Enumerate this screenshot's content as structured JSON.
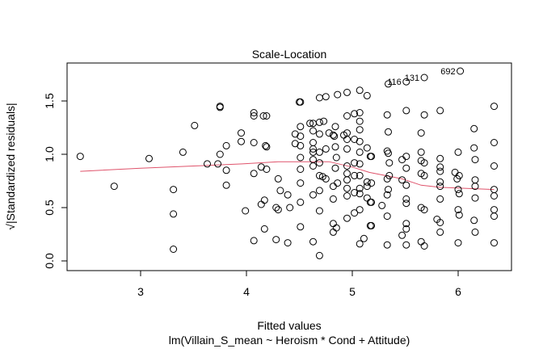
{
  "chart_data": {
    "type": "scatter",
    "title": "Scale-Location",
    "xlabel": "Fitted values",
    "subtitle": "lm(Villain_S_mean ~ Heroism * Cond + Attitude)",
    "ylabel": "√|Standardized residuals|",
    "xlim": [
      2.35,
      6.55
    ],
    "ylim": [
      0.0,
      1.85
    ],
    "x_ticks": [
      "3",
      "4",
      "5",
      "6"
    ],
    "x_tick_values": [
      3,
      4,
      5,
      6
    ],
    "y_ticks": [
      "0.0",
      "0.5",
      "1.0",
      "1.5"
    ],
    "y_tick_values": [
      0.0,
      0.5,
      1.0,
      1.5
    ],
    "grid": false,
    "smooth_color": "#DF536B",
    "point_color": "#000000",
    "smooth": [
      [
        2.43,
        0.84
      ],
      [
        3.0,
        0.87
      ],
      [
        3.5,
        0.89
      ],
      [
        3.96,
        0.91
      ],
      [
        4.3,
        0.93
      ],
      [
        4.78,
        0.93
      ],
      [
        5.0,
        0.88
      ],
      [
        5.16,
        0.83
      ],
      [
        5.47,
        0.77
      ],
      [
        5.65,
        0.71
      ],
      [
        5.83,
        0.69
      ],
      [
        6.34,
        0.67
      ]
    ],
    "labeled_points": [
      {
        "label": "116",
        "x": 5.51,
        "y": 1.68
      },
      {
        "label": "131",
        "x": 5.68,
        "y": 1.72
      },
      {
        "label": "692",
        "x": 6.02,
        "y": 1.78
      }
    ],
    "points": [
      [
        2.43,
        0.98
      ],
      [
        2.75,
        0.7
      ],
      [
        3.08,
        0.96
      ],
      [
        3.31,
        0.67
      ],
      [
        3.31,
        0.44
      ],
      [
        3.31,
        0.11
      ],
      [
        3.4,
        1.02
      ],
      [
        3.51,
        1.27
      ],
      [
        3.63,
        0.91
      ],
      [
        3.73,
        0.91
      ],
      [
        3.75,
        1.0
      ],
      [
        3.75,
        1.44
      ],
      [
        3.75,
        1.45
      ],
      [
        3.81,
        1.08
      ],
      [
        3.81,
        0.85
      ],
      [
        3.81,
        0.71
      ],
      [
        3.95,
        1.2
      ],
      [
        3.95,
        1.12
      ],
      [
        3.99,
        0.47
      ],
      [
        4.07,
        1.39
      ],
      [
        4.07,
        1.36
      ],
      [
        4.07,
        1.11
      ],
      [
        4.07,
        0.82
      ],
      [
        4.07,
        0.19
      ],
      [
        4.14,
        0.88
      ],
      [
        4.14,
        0.53
      ],
      [
        4.16,
        1.36
      ],
      [
        4.19,
        1.36
      ],
      [
        4.17,
        0.57
      ],
      [
        4.17,
        0.3
      ],
      [
        4.18,
        1.08
      ],
      [
        4.19,
        1.07
      ],
      [
        4.19,
        0.86
      ],
      [
        4.28,
        0.5
      ],
      [
        4.28,
        0.2
      ],
      [
        4.3,
        0.77
      ],
      [
        4.3,
        0.48
      ],
      [
        4.32,
        0.66
      ],
      [
        4.39,
        0.62
      ],
      [
        4.39,
        0.17
      ],
      [
        4.41,
        0.5
      ],
      [
        4.46,
        1.19
      ],
      [
        4.46,
        1.1
      ],
      [
        4.5,
        1.49
      ],
      [
        4.51,
        1.49
      ],
      [
        4.51,
        1.26
      ],
      [
        4.51,
        1.17
      ],
      [
        4.51,
        1.08
      ],
      [
        4.51,
        0.97
      ],
      [
        4.51,
        0.86
      ],
      [
        4.51,
        0.73
      ],
      [
        4.51,
        0.55
      ],
      [
        4.51,
        0.32
      ],
      [
        4.6,
        1.29
      ],
      [
        4.63,
        1.29
      ],
      [
        4.63,
        1.22
      ],
      [
        4.63,
        1.11
      ],
      [
        4.63,
        1.05
      ],
      [
        4.63,
        1.02
      ],
      [
        4.63,
        0.95
      ],
      [
        4.63,
        0.89
      ],
      [
        4.63,
        0.62
      ],
      [
        4.63,
        0.18
      ],
      [
        4.69,
        1.53
      ],
      [
        4.75,
        1.54
      ],
      [
        4.69,
        1.3
      ],
      [
        4.73,
        1.31
      ],
      [
        4.69,
        1.19
      ],
      [
        4.69,
        1.02
      ],
      [
        4.69,
        0.92
      ],
      [
        4.69,
        0.8
      ],
      [
        4.69,
        0.66
      ],
      [
        4.69,
        0.47
      ],
      [
        4.69,
        0.05
      ],
      [
        4.75,
        1.05
      ],
      [
        4.75,
        0.77
      ],
      [
        4.72,
        0.79
      ],
      [
        4.78,
        1.2
      ],
      [
        4.82,
        1.18
      ],
      [
        4.83,
        1.17
      ],
      [
        4.84,
        1.26
      ],
      [
        4.84,
        1.07
      ],
      [
        4.85,
        0.97
      ],
      [
        4.84,
        0.87
      ],
      [
        4.82,
        0.7
      ],
      [
        4.86,
        0.73
      ],
      [
        4.82,
        0.58
      ],
      [
        4.82,
        0.35
      ],
      [
        4.85,
        0.31
      ],
      [
        4.82,
        0.27
      ],
      [
        4.86,
        1.56
      ],
      [
        4.92,
        1.18
      ],
      [
        4.95,
        1.58
      ],
      [
        5.07,
        1.6
      ],
      [
        5.14,
        1.55
      ],
      [
        4.95,
        1.36
      ],
      [
        5.02,
        1.38
      ],
      [
        5.07,
        1.39
      ],
      [
        5.07,
        1.31
      ],
      [
        5.07,
        1.23
      ],
      [
        4.95,
        1.2
      ],
      [
        4.95,
        1.14
      ],
      [
        4.95,
        1.05
      ],
      [
        4.95,
        0.89
      ],
      [
        4.95,
        0.82
      ],
      [
        4.95,
        0.76
      ],
      [
        4.95,
        0.68
      ],
      [
        4.95,
        0.61
      ],
      [
        4.95,
        0.4
      ],
      [
        5.02,
        1.14
      ],
      [
        5.02,
        0.92
      ],
      [
        5.02,
        0.8
      ],
      [
        5.02,
        0.64
      ],
      [
        5.02,
        0.45
      ],
      [
        5.07,
        1.12
      ],
      [
        5.07,
        1.02
      ],
      [
        5.07,
        0.91
      ],
      [
        5.07,
        0.8
      ],
      [
        5.07,
        0.68
      ],
      [
        5.07,
        0.63
      ],
      [
        5.07,
        0.48
      ],
      [
        5.07,
        0.16
      ],
      [
        5.11,
        0.21
      ],
      [
        5.14,
        1.06
      ],
      [
        5.14,
        0.74
      ],
      [
        5.14,
        0.7
      ],
      [
        5.14,
        0.59
      ],
      [
        5.17,
        0.55
      ],
      [
        5.17,
        0.33
      ],
      [
        5.17,
        0.98
      ],
      [
        5.18,
        0.98
      ],
      [
        5.18,
        0.73
      ],
      [
        5.18,
        0.55
      ],
      [
        5.18,
        0.33
      ],
      [
        5.28,
        0.52
      ],
      [
        5.33,
        1.37
      ],
      [
        5.34,
        1.21
      ],
      [
        5.34,
        1.66
      ],
      [
        5.33,
        1.03
      ],
      [
        5.34,
        1.01
      ],
      [
        5.35,
        0.92
      ],
      [
        5.35,
        0.8
      ],
      [
        5.33,
        0.77
      ],
      [
        5.34,
        0.67
      ],
      [
        5.33,
        0.62
      ],
      [
        5.33,
        0.42
      ],
      [
        5.33,
        0.15
      ],
      [
        5.47,
        0.95
      ],
      [
        5.51,
        0.98
      ],
      [
        5.51,
        1.41
      ],
      [
        5.51,
        0.87
      ],
      [
        5.47,
        0.76
      ],
      [
        5.51,
        0.71
      ],
      [
        5.51,
        0.58
      ],
      [
        5.51,
        0.54
      ],
      [
        5.51,
        0.35
      ],
      [
        5.51,
        0.3
      ],
      [
        5.47,
        0.24
      ],
      [
        5.51,
        0.15
      ],
      [
        5.68,
        1.37
      ],
      [
        5.65,
        1.2
      ],
      [
        5.65,
        1.02
      ],
      [
        5.65,
        0.94
      ],
      [
        5.68,
        0.92
      ],
      [
        5.65,
        0.82
      ],
      [
        5.68,
        0.8
      ],
      [
        5.65,
        0.5
      ],
      [
        5.68,
        0.48
      ],
      [
        5.65,
        0.18
      ],
      [
        5.68,
        0.14
      ],
      [
        5.83,
        1.41
      ],
      [
        5.83,
        0.96
      ],
      [
        5.83,
        0.88
      ],
      [
        5.83,
        0.84
      ],
      [
        5.83,
        0.74
      ],
      [
        5.83,
        0.7
      ],
      [
        5.83,
        0.58
      ],
      [
        5.8,
        0.39
      ],
      [
        5.83,
        0.36
      ],
      [
        5.83,
        0.27
      ],
      [
        6.0,
        1.02
      ],
      [
        5.97,
        0.83
      ],
      [
        6.01,
        0.8
      ],
      [
        5.99,
        0.77
      ],
      [
        6.0,
        0.67
      ],
      [
        6.01,
        0.63
      ],
      [
        6.0,
        0.48
      ],
      [
        6.01,
        0.43
      ],
      [
        6.0,
        0.17
      ],
      [
        6.15,
        1.24
      ],
      [
        6.15,
        1.06
      ],
      [
        6.16,
        0.95
      ],
      [
        6.16,
        0.76
      ],
      [
        6.16,
        0.7
      ],
      [
        6.16,
        0.59
      ],
      [
        6.15,
        0.38
      ],
      [
        6.16,
        0.27
      ],
      [
        6.34,
        1.45
      ],
      [
        6.34,
        1.11
      ],
      [
        6.34,
        0.89
      ],
      [
        6.34,
        0.67
      ],
      [
        6.34,
        0.61
      ],
      [
        6.34,
        0.48
      ],
      [
        6.34,
        0.42
      ],
      [
        6.34,
        0.17
      ]
    ]
  }
}
